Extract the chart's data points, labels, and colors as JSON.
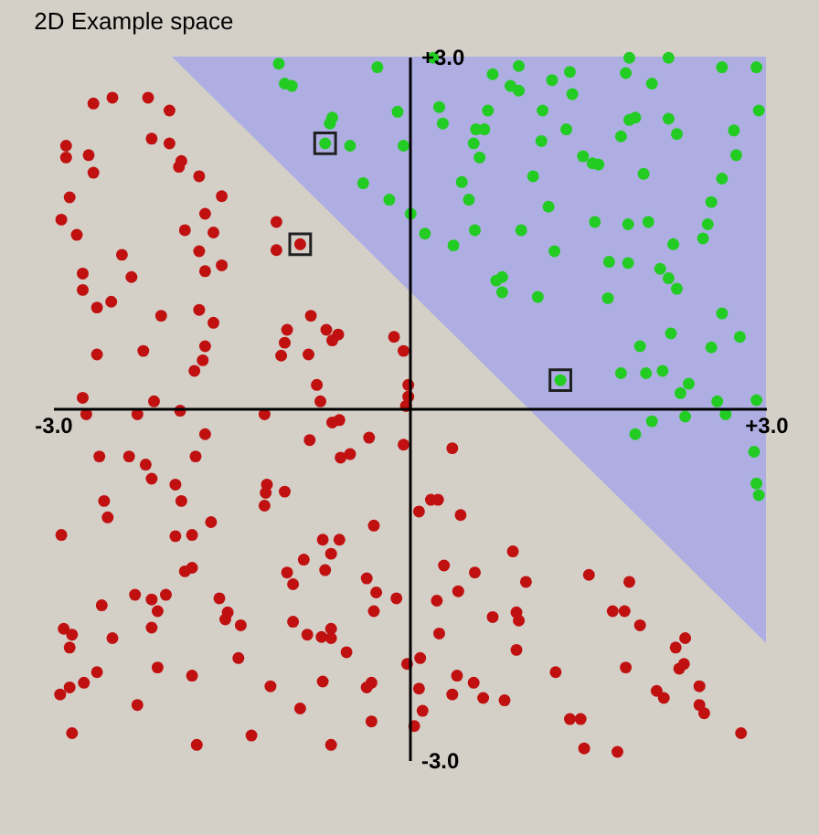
{
  "chart_data": {
    "type": "scatter",
    "title": "2D Example space",
    "xlim": [
      -3,
      3
    ],
    "ylim": [
      -3,
      3
    ],
    "xticks": [
      {
        "value": -3,
        "label": "-3.0"
      },
      {
        "value": 3,
        "label": "+3.0"
      }
    ],
    "yticks": [
      {
        "value": -3,
        "label": "-3.0"
      },
      {
        "value": 3,
        "label": "+3.0"
      }
    ],
    "series": [
      {
        "type": "area",
        "color": "#aaaae6",
        "x": [
          -2,
          3
        ],
        "values": [
          3,
          -2
        ]
      },
      {
        "color": "#c01010",
        "marker": "circle",
        "x": [
          -2.66,
          -2.5,
          -2.2,
          -2.02,
          -2.89,
          -2.89,
          -2.7,
          -2.66,
          -2.17,
          -2.02,
          -1.92,
          -1.94,
          -1.77,
          -2.86,
          -1.58,
          -2.93,
          -1.72,
          -2.8,
          -1.89,
          -1.65,
          -1.12,
          -1.12,
          -0.92,
          -2.42,
          -1.77,
          -2.75,
          -2.34,
          -1.72,
          -1.58,
          -2.75,
          -2.63,
          -2.51,
          -2.09,
          -1.77,
          -1.65,
          -0.83,
          -1.03,
          -0.7,
          -0.6,
          -0.65,
          -1.05,
          -0.13,
          -0.05,
          -2.63,
          -2.24,
          -1.72,
          -1.74,
          -1.81,
          -1.08,
          -0.85,
          -0.78,
          -2.75,
          -2.15,
          -0.75,
          -0.01,
          -0.01,
          -0.03,
          0.36,
          0.08,
          0.18,
          0.24,
          0.43,
          0.87,
          0.29,
          0.55,
          0.98,
          0.41,
          0.23,
          0.7,
          0.9,
          0.92,
          1.51,
          1.85,
          1.71,
          1.81,
          1.94,
          0.25,
          0.9,
          0.09,
          -0.02,
          0.4,
          1.23,
          0.54,
          1.82,
          2.32,
          2.24,
          2.27,
          2.31,
          0.08,
          0.36,
          0.62,
          0.8,
          2.08,
          2.14,
          2.44,
          2.44,
          2.48,
          0.11,
          0.04,
          1.35,
          1.44,
          2.79,
          1.47,
          1.75,
          -2.72,
          -2.29,
          -1.93,
          -1.22,
          -0.65,
          -0.59,
          -1.72,
          -0.84,
          -0.34,
          -0.05,
          -2.61,
          -2.36,
          -2.22,
          -2.17,
          -1.8,
          -0.58,
          -0.5,
          -1.97,
          -1.92,
          -1.2,
          -1.21,
          -1.05,
          -1.22,
          -2.57,
          -2.54,
          -1.67,
          -2.93,
          -1.97,
          -1.83,
          -0.3,
          -0.73,
          -0.59,
          -0.89,
          -0.66,
          -0.71,
          -1.89,
          -1.83,
          -1.03,
          -0.98,
          -0.36,
          -0.28,
          -0.11,
          -2.31,
          -2.17,
          -2.05,
          -2.12,
          -1.6,
          -1.53,
          -1.55,
          -1.42,
          -2.59,
          -2.91,
          -2.84,
          -2.86,
          -2.5,
          -2.17,
          -0.98,
          -0.86,
          -0.74,
          -0.66,
          -0.66,
          -0.53,
          -0.3,
          -2.12,
          -1.83,
          -1.44,
          -2.63,
          -2.86,
          -2.74,
          -2.94,
          -1.17,
          -0.73,
          -0.36,
          -0.32,
          -2.29,
          -0.92,
          -0.32,
          -2.84,
          -1.79,
          -1.33,
          -0.66
        ],
        "values": [
          2.6,
          2.65,
          2.65,
          2.54,
          2.24,
          2.14,
          2.16,
          2.01,
          2.3,
          2.26,
          2.11,
          2.06,
          1.98,
          1.8,
          1.81,
          1.61,
          1.66,
          1.48,
          1.52,
          1.5,
          1.59,
          1.35,
          1.4,
          1.31,
          1.34,
          1.15,
          1.12,
          1.17,
          1.22,
          1.01,
          0.86,
          0.91,
          0.79,
          0.84,
          0.73,
          0.79,
          0.67,
          0.67,
          0.63,
          0.58,
          0.56,
          0.61,
          0.49,
          0.46,
          0.49,
          0.53,
          0.41,
          0.32,
          0.45,
          0.46,
          0.2,
          0.09,
          0.06,
          0.06,
          0.2,
          0.1,
          0.02,
          -0.34,
          -0.88,
          -0.78,
          -0.78,
          -0.91,
          -1.22,
          -1.34,
          -1.4,
          -1.48,
          -1.56,
          -1.64,
          -1.78,
          -1.74,
          -1.81,
          -1.42,
          -1.48,
          -1.73,
          -1.73,
          -1.85,
          -1.92,
          -2.06,
          -2.13,
          -2.18,
          -2.28,
          -2.25,
          -2.34,
          -2.21,
          -1.96,
          -2.04,
          -2.22,
          -2.18,
          -2.39,
          -2.44,
          -2.47,
          -2.49,
          -2.41,
          -2.47,
          -2.37,
          -2.53,
          -2.6,
          -2.58,
          -2.71,
          -2.65,
          -2.65,
          -2.77,
          -2.9,
          -2.93,
          -0.05,
          -0.05,
          -0.02,
          -0.05,
          -0.12,
          -0.1,
          -0.22,
          -0.27,
          -0.25,
          -0.31,
          -0.41,
          -0.41,
          -0.48,
          -0.6,
          -0.41,
          -0.42,
          -0.39,
          -0.65,
          -0.79,
          -0.65,
          -0.72,
          -0.71,
          -0.83,
          -0.79,
          -0.93,
          -0.97,
          -1.08,
          -1.09,
          -1.08,
          -1,
          -1.12,
          -1.12,
          -1.29,
          -1.24,
          -1.38,
          -1.39,
          -1.36,
          -1.4,
          -1.5,
          -1.45,
          -1.57,
          -1.62,
          -1.59,
          -1.63,
          -1.59,
          -1.73,
          -1.62,
          -1.74,
          -1.8,
          -1.85,
          -1.68,
          -1.88,
          -1.93,
          -2.04,
          -1.96,
          -1.87,
          -1.82,
          -1.93,
          -1.95,
          -1.88,
          -1.96,
          -2.08,
          -1.73,
          -2.21,
          -2.28,
          -2.13,
          -2.25,
          -2.38,
          -2.34,
          -2.44,
          -2.37,
          -2.33,
          -2.38,
          -2.34,
          -2.53,
          -2.56,
          -2.67,
          -2.77,
          -2.87,
          -2.79,
          -2.87
        ]
      },
      {
        "color": "#22cc22",
        "marker": "circle",
        "x": [
          -1.1,
          -1.05,
          -0.99,
          -0.65,
          -0.67,
          -0.71,
          -0.5,
          -0.39,
          -0.17,
          -0.27,
          -0.1,
          -0.05,
          0.2,
          0.92,
          0.7,
          0.85,
          0.92,
          1.2,
          1.35,
          1.37,
          1.82,
          1.85,
          2.18,
          2.04,
          2.63,
          2.92,
          0.25,
          0.28,
          0.66,
          1.12,
          0.56,
          0.63,
          0.54,
          0.59,
          1.11,
          1.32,
          1.85,
          1.9,
          1.78,
          2.18,
          2.25,
          2.73,
          2.94,
          2.75,
          1.46,
          1.54,
          1.59,
          1.04,
          1.97,
          2.63,
          0.44,
          0.5,
          1.17,
          0.01,
          0.13,
          0.37,
          0.55,
          0.94,
          1.56,
          1.84,
          2.01,
          2.54,
          2.51,
          2.47,
          2.22,
          1.22,
          1.68,
          1.84,
          2.11,
          2.18,
          2.25,
          0.78,
          0.73,
          0.78,
          1.08,
          1.67,
          2.63,
          2.78,
          2.2,
          1.94,
          2.54,
          1.78,
          1.99,
          2.13,
          1.27,
          2.35,
          2.28,
          2.59,
          2.92,
          1.9,
          2.04,
          2.32,
          2.66,
          2.9,
          2.92,
          2.94
        ],
        "values": [
          2.94,
          2.77,
          2.75,
          2.48,
          2.43,
          2.26,
          2.24,
          1.92,
          1.78,
          2.91,
          2.53,
          2.24,
          2.99,
          2.92,
          2.85,
          2.75,
          2.71,
          2.8,
          2.87,
          2.68,
          2.86,
          2.99,
          2.99,
          2.77,
          2.91,
          2.91,
          2.57,
          2.43,
          2.54,
          2.54,
          2.38,
          2.38,
          2.26,
          2.14,
          2.28,
          2.38,
          2.46,
          2.48,
          2.32,
          2.47,
          2.34,
          2.37,
          2.54,
          2.16,
          2.15,
          2.09,
          2.08,
          1.98,
          2,
          1.96,
          1.93,
          1.78,
          1.72,
          1.66,
          1.49,
          1.39,
          1.52,
          1.52,
          1.59,
          1.57,
          1.59,
          1.76,
          1.57,
          1.45,
          1.4,
          1.34,
          1.25,
          1.24,
          1.19,
          1.11,
          1.02,
          1.12,
          1.09,
          0.99,
          0.95,
          0.94,
          0.81,
          0.61,
          0.64,
          0.53,
          0.52,
          0.3,
          0.3,
          0.32,
          0.24,
          0.21,
          0.13,
          0.06,
          0.07,
          -0.22,
          -0.11,
          -0.07,
          -0.05,
          -0.37,
          -0.64,
          -0.74
        ]
      },
      {
        "color": "#202020",
        "marker": "square",
        "x": [
          -0.71,
          -0.92,
          1.27
        ],
        "values": [
          2.26,
          1.4,
          0.24
        ]
      }
    ]
  }
}
